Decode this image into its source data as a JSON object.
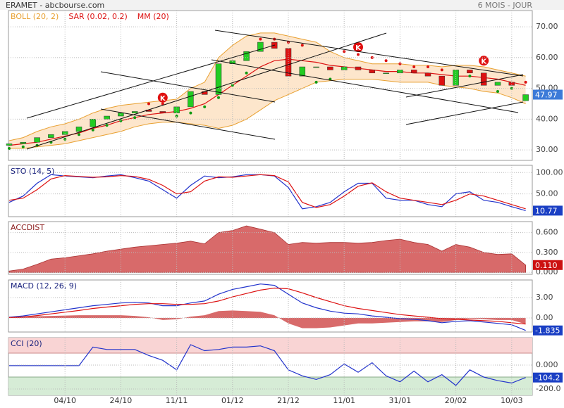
{
  "header": {
    "title": "ERAMET - abcbourse.com",
    "period": "6 MOIS - JOUR"
  },
  "chart_data": [
    {
      "type": "candlestick",
      "categories": [
        null,
        null,
        null,
        null,
        "04/10",
        null,
        null,
        null,
        "24/10",
        null,
        null,
        null,
        "11/11",
        null,
        null,
        null,
        "01/12",
        null,
        null,
        null,
        "21/12",
        null,
        null,
        null,
        "11/01",
        null,
        null,
        null,
        "31/01",
        null,
        null,
        null,
        "20/02",
        null,
        null,
        null,
        "10/03",
        null
      ],
      "open": [
        31.5,
        32,
        32.5,
        34,
        35,
        36,
        37.5,
        40,
        41,
        42,
        43,
        42.5,
        42,
        44,
        49,
        48,
        58,
        59,
        62,
        65,
        63,
        54,
        57,
        57,
        56,
        57,
        56,
        55,
        55,
        56,
        55,
        54,
        51,
        56,
        55,
        51,
        52,
        46
      ],
      "close": [
        32,
        32.5,
        34,
        35,
        36,
        37.5,
        40,
        41,
        42,
        42.5,
        42.5,
        42,
        44,
        49,
        48,
        58,
        59,
        62,
        65,
        63,
        54,
        57,
        57,
        56,
        57,
        56,
        55,
        55,
        56,
        55,
        54,
        51,
        56,
        55,
        51,
        52,
        51,
        47.97
      ],
      "up_color": "#22cc22",
      "down_color": "#dd1111",
      "series": [
        {
          "name": "BOLL (20, 2)",
          "color": "#e8a030",
          "fill": "#fde6cc",
          "upper": [
            33,
            34,
            36,
            37.5,
            38.5,
            40,
            42,
            43.5,
            44.5,
            45,
            45.5,
            46,
            46.5,
            50,
            52,
            60,
            64,
            67,
            68,
            68,
            67,
            66,
            65,
            62,
            60,
            59,
            58,
            58,
            58,
            57.5,
            57.5,
            57,
            57.5,
            57.5,
            57,
            56,
            55,
            54
          ],
          "lower": [
            30.5,
            30.5,
            31,
            31.5,
            32,
            33,
            34,
            35,
            36,
            37.5,
            38.5,
            39,
            39,
            38.5,
            38,
            37,
            38,
            40,
            43,
            46,
            48,
            50,
            52,
            52.5,
            53,
            53,
            53,
            52.5,
            52,
            52,
            52,
            51,
            50.5,
            50,
            49,
            48.5,
            47,
            45
          ]
        },
        {
          "name": "SAR (0.02, 0.2)",
          "color": "#dd1111",
          "below_color": "#119911",
          "values": [
            30.5,
            31,
            31.5,
            32.5,
            33.5,
            35,
            36.5,
            38,
            39.5,
            40.5,
            45,
            45,
            41,
            42,
            44,
            47,
            51,
            55,
            66,
            66,
            65,
            64,
            52,
            53,
            62,
            61,
            60,
            59,
            58,
            57,
            57,
            56,
            55,
            54,
            53,
            49,
            50,
            52
          ]
        },
        {
          "name": "MM (20)",
          "color": "#dd1111",
          "values": [
            31.5,
            32,
            32.5,
            33.5,
            34.5,
            35.5,
            37,
            38,
            39.5,
            40.5,
            41.5,
            42,
            42.5,
            43.5,
            45,
            48,
            51,
            54,
            57,
            59,
            59.5,
            59,
            58.5,
            57.5,
            57,
            56.5,
            56,
            55.5,
            55.5,
            55,
            55,
            54.5,
            54,
            54,
            53.5,
            53,
            52,
            51
          ]
        }
      ],
      "annotations": [
        {
          "label": "K",
          "index": 11,
          "value": 47
        },
        {
          "label": "K",
          "index": 25,
          "value": 63.4
        },
        {
          "label": "K",
          "index": 34,
          "value": 59
        }
      ],
      "ylim": [
        26.6,
        75.3
      ],
      "yticks": [
        {
          "value": 30,
          "label": "30.00"
        },
        {
          "value": 40,
          "label": "40.00"
        },
        {
          "value": 50,
          "label": "50.00"
        },
        {
          "value": 60,
          "label": "60.00"
        },
        {
          "value": 70,
          "label": "70.00"
        }
      ],
      "last_label": "47.97",
      "last_color": "#3c7ad8"
    },
    {
      "type": "line",
      "title": "STO (14, 5)",
      "title_color": "#1a237e",
      "series": [
        {
          "color": "#2233cc",
          "values": [
            30,
            45,
            75,
            95,
            92,
            90,
            88,
            92,
            95,
            88,
            80,
            60,
            40,
            70,
            92,
            88,
            90,
            95,
            95,
            92,
            65,
            15,
            20,
            30,
            55,
            75,
            75,
            40,
            35,
            35,
            25,
            20,
            50,
            55,
            35,
            30,
            20,
            10.77
          ]
        },
        {
          "color": "#dd1111",
          "values": [
            35,
            40,
            60,
            85,
            93,
            91,
            89,
            90,
            93,
            91,
            84,
            70,
            50,
            55,
            80,
            90,
            89,
            92,
            95,
            93,
            78,
            30,
            18,
            25,
            45,
            68,
            76,
            55,
            40,
            35,
            30,
            25,
            35,
            50,
            45,
            35,
            25,
            15
          ]
        }
      ],
      "ylim": [
        -3.4,
        117
      ],
      "yticks": [
        {
          "value": 50,
          "label": "50.00"
        },
        {
          "value": 100,
          "label": "100.00"
        }
      ],
      "last_label": "10.77",
      "last_color": "#1a3fc4"
    },
    {
      "type": "area",
      "title": "ACCDIST",
      "title_color": "#8b1a1a",
      "series": [
        {
          "color": "#d86a6a",
          "values": [
            0.02,
            0.05,
            0.12,
            0.2,
            0.22,
            0.25,
            0.28,
            0.32,
            0.35,
            0.38,
            0.4,
            0.42,
            0.44,
            0.47,
            0.43,
            0.6,
            0.63,
            0.7,
            0.65,
            0.6,
            0.42,
            0.45,
            0.44,
            0.45,
            0.45,
            0.44,
            0.45,
            0.48,
            0.5,
            0.45,
            0.42,
            0.32,
            0.42,
            0.38,
            0.3,
            0.27,
            0.28,
            0.11
          ]
        }
      ],
      "ylim": [
        -0.03,
        0.765
      ],
      "yticks": [
        {
          "value": 0,
          "label": "0.000"
        },
        {
          "value": 0.3,
          "label": "0.300"
        },
        {
          "value": 0.6,
          "label": "0.600"
        }
      ],
      "last_label": "0.110",
      "last_color": "#cc1111"
    },
    {
      "type": "line",
      "title": "MACD (12, 26, 9)",
      "title_color": "#1a237e",
      "series": [
        {
          "color": "#2233cc",
          "values": [
            0.1,
            0.3,
            0.6,
            0.9,
            1.2,
            1.5,
            1.8,
            2.0,
            2.2,
            2.3,
            2.2,
            1.8,
            1.8,
            2.2,
            2.5,
            3.5,
            4.2,
            4.6,
            5.0,
            4.8,
            3.5,
            2.2,
            1.5,
            1.0,
            0.7,
            0.6,
            0.3,
            0.1,
            -0.1,
            -0.2,
            -0.4,
            -0.7,
            -0.5,
            -0.4,
            -0.6,
            -0.8,
            -1.0,
            -1.835
          ]
        },
        {
          "color": "#dd1111",
          "values": [
            0.05,
            0.15,
            0.35,
            0.6,
            0.85,
            1.1,
            1.4,
            1.6,
            1.8,
            2.0,
            2.1,
            2.1,
            2.0,
            2.0,
            2.1,
            2.5,
            3.1,
            3.6,
            4.1,
            4.4,
            4.3,
            3.7,
            3.0,
            2.4,
            1.8,
            1.4,
            1.1,
            0.8,
            0.5,
            0.3,
            0.1,
            -0.1,
            -0.2,
            -0.3,
            -0.4,
            -0.5,
            -0.7,
            -0.9
          ]
        }
      ],
      "histogram": {
        "color": "#d86a6a",
        "values": [
          0.05,
          0.15,
          0.25,
          0.3,
          0.35,
          0.4,
          0.4,
          0.4,
          0.4,
          0.3,
          0.1,
          -0.3,
          -0.2,
          0.2,
          0.4,
          1.0,
          1.1,
          1.0,
          0.9,
          0.4,
          -0.8,
          -1.5,
          -1.5,
          -1.4,
          -1.1,
          -0.8,
          -0.8,
          -0.7,
          -0.6,
          -0.5,
          -0.5,
          -0.6,
          -0.3,
          -0.1,
          -0.2,
          -0.3,
          -0.3,
          -0.9
        ]
      },
      "ylim": [
        -2.07,
        5.59
      ],
      "yticks": [
        {
          "value": 0,
          "label": "0.00"
        },
        {
          "value": 3,
          "label": "3.00"
        }
      ],
      "last_label": "-1.835",
      "last_color": "#1a3fc4"
    },
    {
      "type": "line",
      "title": "CCI (20)",
      "title_color": "#1a237e",
      "series": [
        {
          "color": "#2233cc",
          "values": [
            -5,
            -5,
            -5,
            -5,
            -5,
            -5,
            150,
            130,
            130,
            130,
            80,
            40,
            -40,
            170,
            120,
            130,
            150,
            150,
            160,
            120,
            -40,
            -90,
            -120,
            -80,
            10,
            -60,
            20,
            -90,
            -140,
            -50,
            -140,
            -80,
            -170,
            -40,
            -100,
            -130,
            -150,
            -104.2
          ]
        }
      ],
      "upper_band": 100,
      "lower_band": -100,
      "upper_color": "#f9d4d4",
      "lower_color": "#d6ecd6",
      "ylim": [
        -253,
        229
      ],
      "yticks": [
        {
          "value": -200,
          "label": "-200.0"
        },
        {
          "value": 0,
          "label": "0.000"
        }
      ],
      "last_label": "-104.2",
      "last_color": "#1a3fc4"
    }
  ]
}
